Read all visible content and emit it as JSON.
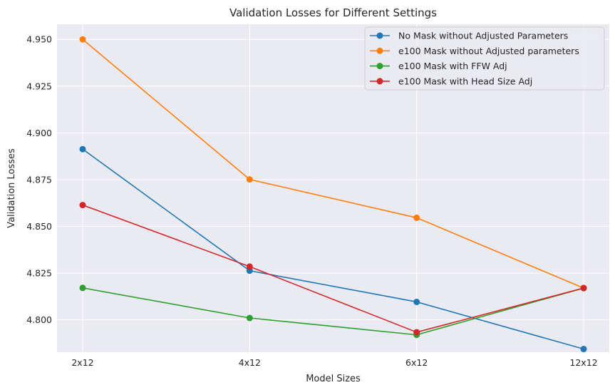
{
  "chart_data": {
    "type": "line",
    "title": "Validation Losses for Different Settings",
    "xlabel": "Model Sizes",
    "ylabel": "Validation Losses",
    "categories": [
      "2x12",
      "4x12",
      "6x12",
      "12x12"
    ],
    "ylim": [
      4.7827,
      4.9581
    ],
    "yticks": [
      "4.800",
      "4.825",
      "4.850",
      "4.875",
      "4.900",
      "4.925",
      "4.950"
    ],
    "grid": true,
    "legend_position": "top-right",
    "series": [
      {
        "name": "No Mask without Adjusted Parameters",
        "color": "#1f77b4",
        "values": [
          4.8913,
          4.8263,
          4.8096,
          4.7844
        ]
      },
      {
        "name": "e100 Mask without Adjusted parameters",
        "color": "#ff7f0e",
        "values": [
          4.95,
          4.8751,
          4.8546,
          4.817
        ]
      },
      {
        "name": "e100 Mask with FFW Adj",
        "color": "#2ca02c",
        "values": [
          4.8171,
          4.801,
          4.792,
          4.817
        ]
      },
      {
        "name": "e100 Mask with Head Size Adj",
        "color": "#d62728",
        "values": [
          4.8614,
          4.8285,
          4.7934,
          4.817
        ]
      }
    ]
  }
}
